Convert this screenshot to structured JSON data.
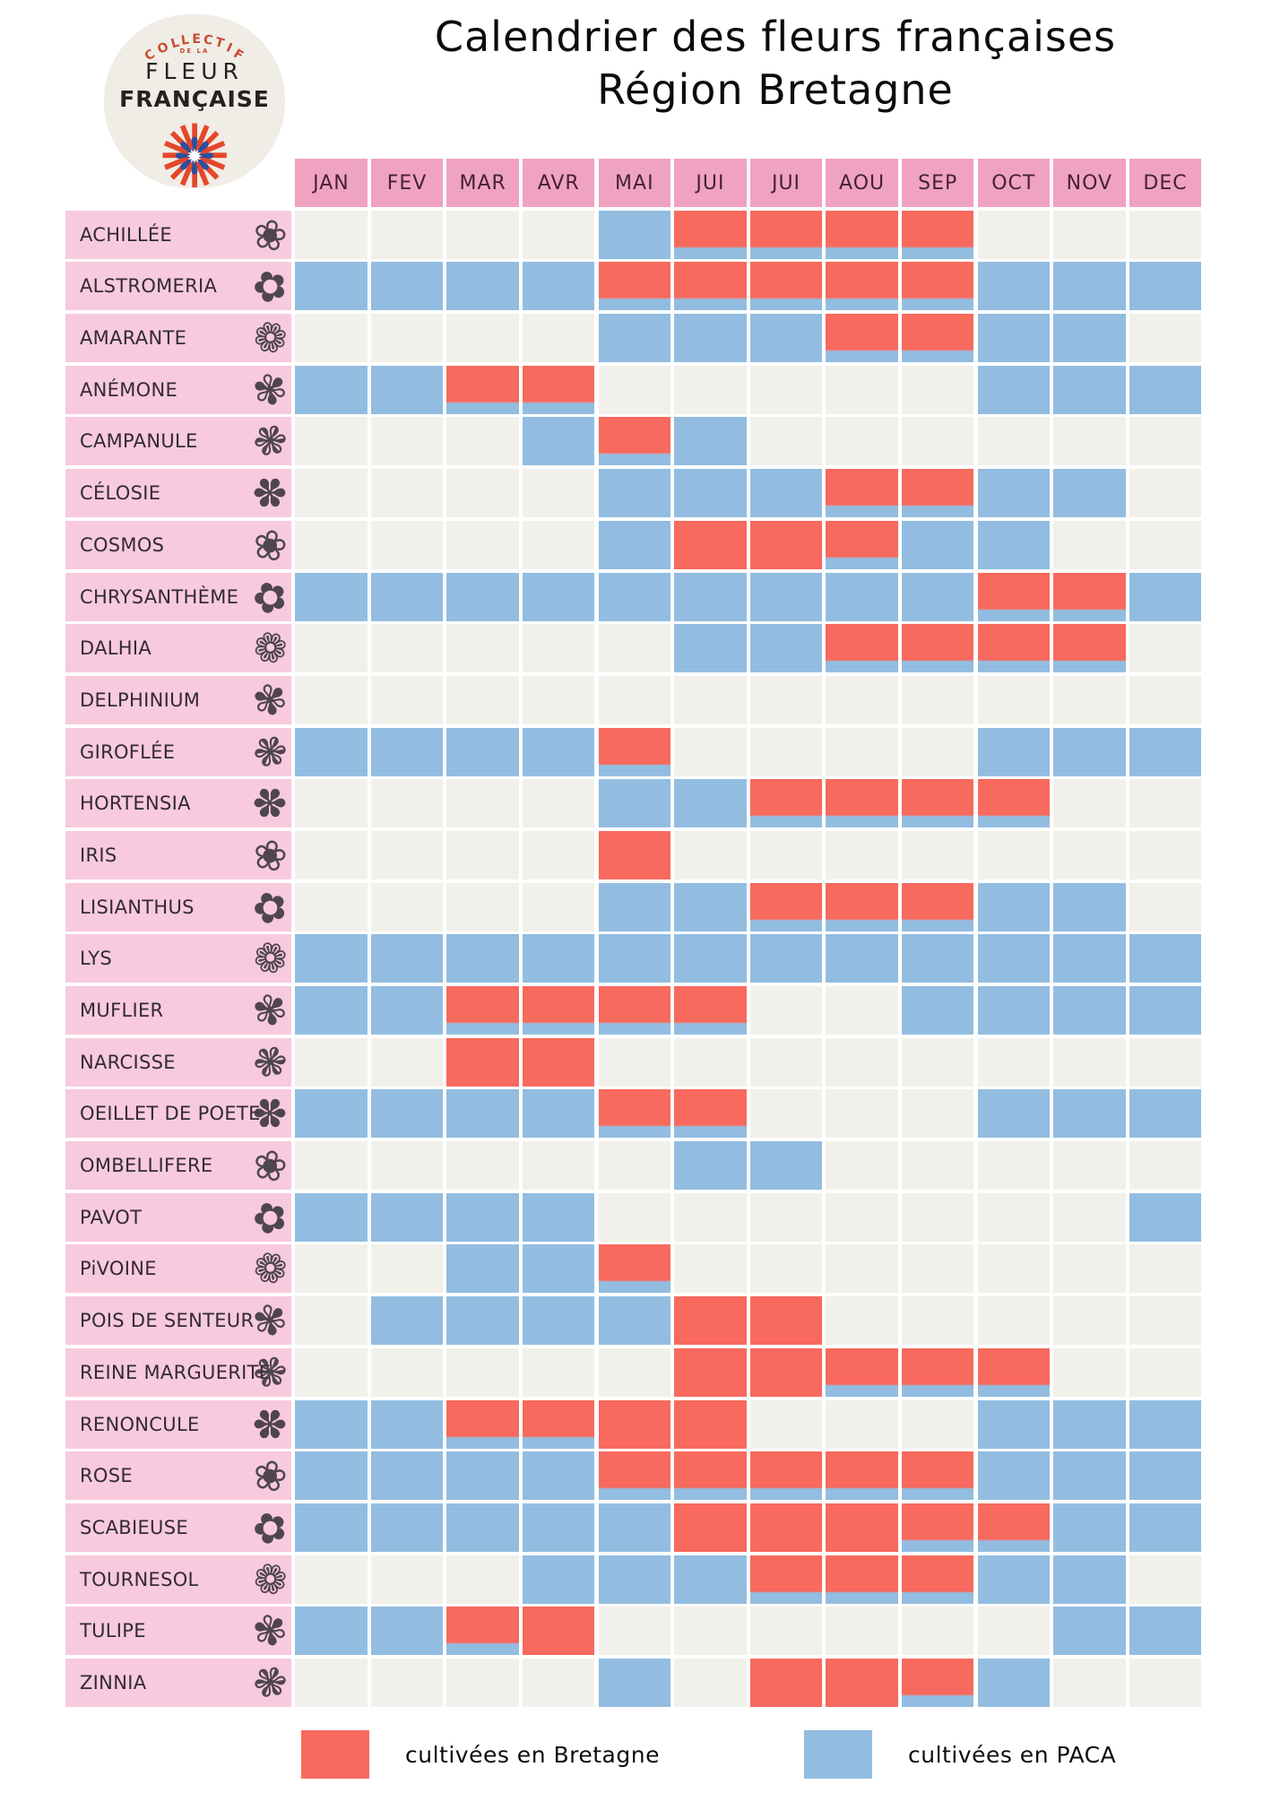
{
  "logo": {
    "top_text": "COLLECTIF",
    "small_text": "DE LA",
    "name_line1": "FLEUR",
    "name_line2": "FRANÇAISE"
  },
  "title": {
    "line1": "Calendrier des fleurs françaises",
    "line2": "Région Bretagne"
  },
  "chart_data": {
    "type": "heatmap",
    "title": "Calendrier des fleurs françaises — Région Bretagne",
    "columns": [
      "JAN",
      "FEV",
      "MAR",
      "AVR",
      "MAI",
      "JUI",
      "JUI",
      "AOU",
      "SEP",
      "OCT",
      "NOV",
      "DEC"
    ],
    "legend": [
      {
        "state": "bretagne",
        "label": "cultivées en Bretagne",
        "color": "#f8695e"
      },
      {
        "state": "paca",
        "label": "cultivées en PACA",
        "color": "#92bde1"
      }
    ],
    "rows": [
      {
        "name": "ACHILLÉE",
        "flower_glyph": "❀",
        "cells": [
          "none",
          "none",
          "none",
          "none",
          "paca",
          "both",
          "both",
          "both",
          "both",
          "none",
          "none",
          "none"
        ]
      },
      {
        "name": "ALSTROMERIA",
        "flower_glyph": "✿",
        "cells": [
          "paca",
          "paca",
          "paca",
          "paca",
          "both",
          "both",
          "both",
          "both",
          "both",
          "paca",
          "paca",
          "paca"
        ]
      },
      {
        "name": "AMARANTE",
        "flower_glyph": "❁",
        "cells": [
          "none",
          "none",
          "none",
          "none",
          "paca",
          "paca",
          "paca",
          "both",
          "both",
          "paca",
          "paca",
          "none"
        ]
      },
      {
        "name": "ANÉMONE",
        "flower_glyph": "✾",
        "cells": [
          "paca",
          "paca",
          "both",
          "both",
          "none",
          "none",
          "none",
          "none",
          "none",
          "paca",
          "paca",
          "paca"
        ]
      },
      {
        "name": "CAMPANULE",
        "flower_glyph": "❃",
        "cells": [
          "none",
          "none",
          "none",
          "paca",
          "both",
          "paca",
          "none",
          "none",
          "none",
          "none",
          "none",
          "none"
        ]
      },
      {
        "name": "CÉLOSIE",
        "flower_glyph": "✽",
        "cells": [
          "none",
          "none",
          "none",
          "none",
          "paca",
          "paca",
          "paca",
          "both",
          "both",
          "paca",
          "paca",
          "none"
        ]
      },
      {
        "name": "COSMOS",
        "flower_glyph": "❀",
        "cells": [
          "none",
          "none",
          "none",
          "none",
          "paca",
          "bretagne",
          "bretagne",
          "both",
          "paca",
          "paca",
          "none",
          "none"
        ]
      },
      {
        "name": "CHRYSANTHÈME",
        "flower_glyph": "✿",
        "cells": [
          "paca",
          "paca",
          "paca",
          "paca",
          "paca",
          "paca",
          "paca",
          "paca",
          "paca",
          "both",
          "both",
          "paca"
        ]
      },
      {
        "name": "DALHIA",
        "flower_glyph": "❁",
        "cells": [
          "none",
          "none",
          "none",
          "none",
          "none",
          "paca",
          "paca",
          "both",
          "both",
          "both",
          "both",
          "none"
        ]
      },
      {
        "name": "DELPHINIUM",
        "flower_glyph": "✾",
        "cells": [
          "none",
          "none",
          "none",
          "none",
          "none",
          "none",
          "none",
          "none",
          "none",
          "none",
          "none",
          "none"
        ]
      },
      {
        "name": "GIROFLÉE",
        "flower_glyph": "❃",
        "cells": [
          "paca",
          "paca",
          "paca",
          "paca",
          "both",
          "none",
          "none",
          "none",
          "none",
          "paca",
          "paca",
          "paca"
        ]
      },
      {
        "name": "HORTENSIA",
        "flower_glyph": "✽",
        "cells": [
          "none",
          "none",
          "none",
          "none",
          "paca",
          "paca",
          "both",
          "both",
          "both",
          "both",
          "none",
          "none"
        ]
      },
      {
        "name": "IRIS",
        "flower_glyph": "❀",
        "cells": [
          "none",
          "none",
          "none",
          "none",
          "bretagne",
          "none",
          "none",
          "none",
          "none",
          "none",
          "none",
          "none"
        ]
      },
      {
        "name": "LISIANTHUS",
        "flower_glyph": "✿",
        "cells": [
          "none",
          "none",
          "none",
          "none",
          "paca",
          "paca",
          "both",
          "both",
          "both",
          "paca",
          "paca",
          "none"
        ]
      },
      {
        "name": "LYS",
        "flower_glyph": "❁",
        "cells": [
          "paca",
          "paca",
          "paca",
          "paca",
          "paca",
          "paca",
          "paca",
          "paca",
          "paca",
          "paca",
          "paca",
          "paca"
        ]
      },
      {
        "name": "MUFLIER",
        "flower_glyph": "✾",
        "cells": [
          "paca",
          "paca",
          "both",
          "both",
          "both",
          "both",
          "none",
          "none",
          "paca",
          "paca",
          "paca",
          "paca"
        ]
      },
      {
        "name": "NARCISSE",
        "flower_glyph": "❃",
        "cells": [
          "none",
          "none",
          "bretagne",
          "bretagne",
          "none",
          "none",
          "none",
          "none",
          "none",
          "none",
          "none",
          "none"
        ]
      },
      {
        "name": "OEILLET DE POETE",
        "flower_glyph": "✽",
        "cells": [
          "paca",
          "paca",
          "paca",
          "paca",
          "both",
          "both",
          "none",
          "none",
          "none",
          "paca",
          "paca",
          "paca"
        ]
      },
      {
        "name": "OMBELLIFERE",
        "flower_glyph": "❀",
        "cells": [
          "none",
          "none",
          "none",
          "none",
          "none",
          "paca",
          "paca",
          "none",
          "none",
          "none",
          "none",
          "none"
        ]
      },
      {
        "name": "PAVOT",
        "flower_glyph": "✿",
        "cells": [
          "paca",
          "paca",
          "paca",
          "paca",
          "none",
          "none",
          "none",
          "none",
          "none",
          "none",
          "none",
          "paca"
        ]
      },
      {
        "name": "PiVOINE",
        "flower_glyph": "❁",
        "cells": [
          "none",
          "none",
          "paca",
          "paca",
          "both",
          "none",
          "none",
          "none",
          "none",
          "none",
          "none",
          "none"
        ]
      },
      {
        "name": "POIS DE SENTEUR",
        "flower_glyph": "✾",
        "cells": [
          "none",
          "paca",
          "paca",
          "paca",
          "paca",
          "bretagne",
          "bretagne",
          "none",
          "none",
          "none",
          "none",
          "none"
        ]
      },
      {
        "name": "REINE MARGUERITE",
        "flower_glyph": "❃",
        "cells": [
          "none",
          "none",
          "none",
          "none",
          "none",
          "bretagne",
          "bretagne",
          "both",
          "both",
          "both",
          "none",
          "none"
        ]
      },
      {
        "name": "RENONCULE",
        "flower_glyph": "✽",
        "cells": [
          "paca",
          "paca",
          "both",
          "both",
          "bretagne",
          "bretagne",
          "none",
          "none",
          "none",
          "paca",
          "paca",
          "paca"
        ]
      },
      {
        "name": "ROSE",
        "flower_glyph": "❀",
        "cells": [
          "paca",
          "paca",
          "paca",
          "paca",
          "both",
          "both",
          "both",
          "both",
          "both",
          "paca",
          "paca",
          "paca"
        ]
      },
      {
        "name": "SCABIEUSE",
        "flower_glyph": "✿",
        "cells": [
          "paca",
          "paca",
          "paca",
          "paca",
          "paca",
          "bretagne",
          "bretagne",
          "bretagne",
          "both",
          "both",
          "paca",
          "paca"
        ]
      },
      {
        "name": "TOURNESOL",
        "flower_glyph": "❁",
        "cells": [
          "none",
          "none",
          "none",
          "paca",
          "paca",
          "paca",
          "both",
          "both",
          "both",
          "paca",
          "paca",
          "none"
        ]
      },
      {
        "name": "TULIPE",
        "flower_glyph": "✾",
        "cells": [
          "paca",
          "paca",
          "both",
          "bretagne",
          "none",
          "none",
          "none",
          "none",
          "none",
          "none",
          "paca",
          "paca"
        ]
      },
      {
        "name": "ZINNIA",
        "flower_glyph": "❃",
        "cells": [
          "none",
          "none",
          "none",
          "none",
          "paca",
          "none",
          "bretagne",
          "bretagne",
          "both",
          "paca",
          "none",
          "none"
        ]
      }
    ]
  },
  "colors": {
    "background": "#ffffff",
    "header_pink": "#f0a3c1",
    "label_pink": "#f8cade",
    "cell_empty": "#f2f0ea",
    "cell_paca": "#92bde1",
    "cell_bretagne": "#f8695e",
    "month_text": "#46203a",
    "label_text": "#322a35",
    "title_text": "#0c0c0c",
    "logo_background": "#f0ede6",
    "logo_red": "#cb4a32",
    "logo_blue": "#2c4f9e"
  }
}
